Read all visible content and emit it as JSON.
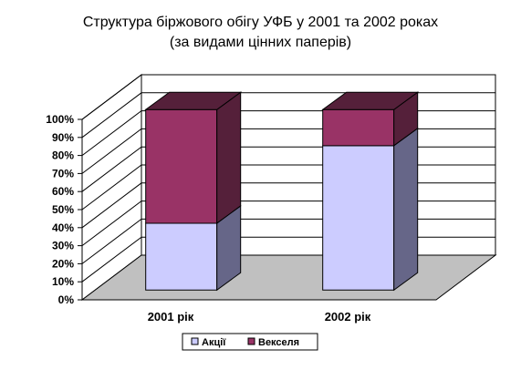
{
  "chart_data": {
    "type": "bar",
    "stacked": "percent",
    "three_d": true,
    "title": "Структура біржового обігу УФБ у 2001 та 2002 роках",
    "subtitle": "(за видами цінних паперів)",
    "categories": [
      "2001 рік",
      "2002 рік"
    ],
    "series": [
      {
        "name": "Акції",
        "values": [
          37,
          80
        ],
        "color": "#ccccff",
        "side_color": "#666688"
      },
      {
        "name": "Векселя",
        "values": [
          63,
          20
        ],
        "color": "#993366",
        "side_color": "#55203a"
      }
    ],
    "ylim": [
      0,
      100
    ],
    "y_ticks": [
      "0%",
      "10%",
      "20%",
      "30%",
      "40%",
      "50%",
      "60%",
      "70%",
      "80%",
      "90%",
      "100%"
    ],
    "grid": true,
    "legend_position": "bottom",
    "floor_color": "#c0c0c0"
  }
}
